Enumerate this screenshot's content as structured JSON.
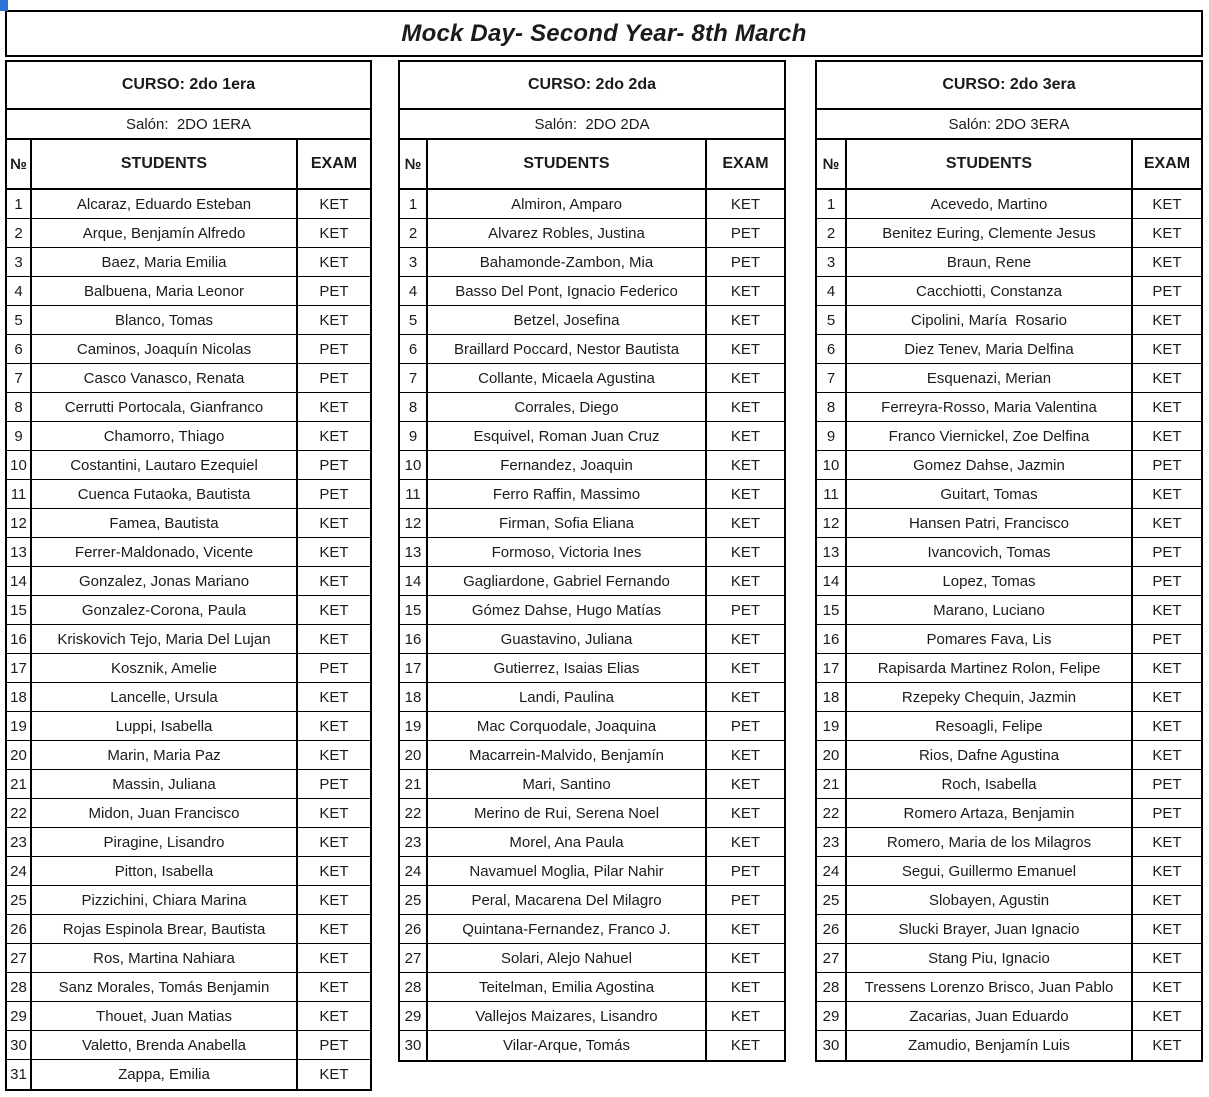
{
  "title": "Mock Day- Second Year- 8th March",
  "accent_color": "#2e73d9",
  "tables": [
    {
      "curso": "CURSO: 2do 1era",
      "salon": "Salón:  2DO 1ERA",
      "columns": [
        "№",
        "STUDENTS",
        "EXAM"
      ],
      "rows": [
        [
          "1",
          "Alcaraz, Eduardo Esteban",
          "KET"
        ],
        [
          "2",
          "Arque, Benjamín Alfredo",
          "KET"
        ],
        [
          "3",
          "Baez, Maria Emilia",
          "KET"
        ],
        [
          "4",
          "Balbuena, Maria Leonor",
          "PET"
        ],
        [
          "5",
          "Blanco, Tomas",
          "KET"
        ],
        [
          "6",
          "Caminos, Joaquín Nicolas",
          "PET"
        ],
        [
          "7",
          "Casco Vanasco, Renata",
          "PET"
        ],
        [
          "8",
          "Cerrutti Portocala, Gianfranco",
          "KET"
        ],
        [
          "9",
          "Chamorro, Thiago",
          "KET"
        ],
        [
          "10",
          "Costantini, Lautaro Ezequiel",
          "PET"
        ],
        [
          "11",
          "Cuenca Futaoka, Bautista",
          "PET"
        ],
        [
          "12",
          "Famea, Bautista",
          "KET"
        ],
        [
          "13",
          "Ferrer-Maldonado, Vicente",
          "KET"
        ],
        [
          "14",
          "Gonzalez, Jonas Mariano",
          "KET"
        ],
        [
          "15",
          "Gonzalez-Corona, Paula",
          "KET"
        ],
        [
          "16",
          "Kriskovich Tejo, Maria Del Lujan",
          "KET"
        ],
        [
          "17",
          "Kosznik, Amelie",
          "PET"
        ],
        [
          "18",
          "Lancelle, Ursula",
          "KET"
        ],
        [
          "19",
          "Luppi, Isabella",
          "KET"
        ],
        [
          "20",
          "Marin, Maria Paz",
          "KET"
        ],
        [
          "21",
          "Massin, Juliana",
          "PET"
        ],
        [
          "22",
          "Midon, Juan Francisco",
          "KET"
        ],
        [
          "23",
          "Piragine, Lisandro",
          "KET"
        ],
        [
          "24",
          "Pitton, Isabella",
          "KET"
        ],
        [
          "25",
          "Pizzichini, Chiara Marina",
          "KET"
        ],
        [
          "26",
          "Rojas Espinola Brear, Bautista",
          "KET"
        ],
        [
          "27",
          "Ros, Martina Nahiara",
          "KET"
        ],
        [
          "28",
          "Sanz Morales, Tomás Benjamin",
          "KET"
        ],
        [
          "29",
          "Thouet, Juan Matias",
          "KET"
        ],
        [
          "30",
          "Valetto, Brenda Anabella",
          "PET"
        ],
        [
          "31",
          "Zappa, Emilia",
          "KET"
        ]
      ]
    },
    {
      "curso": "CURSO: 2do 2da",
      "salon": "Salón:  2DO 2DA",
      "columns": [
        "№",
        "STUDENTS",
        "EXAM"
      ],
      "rows": [
        [
          "1",
          "Almiron, Amparo",
          "KET"
        ],
        [
          "2",
          "Alvarez Robles, Justina",
          "PET"
        ],
        [
          "3",
          "Bahamonde-Zambon, Mia",
          "PET"
        ],
        [
          "4",
          "Basso Del Pont, Ignacio Federico",
          "KET"
        ],
        [
          "5",
          "Betzel, Josefina",
          "KET"
        ],
        [
          "6",
          "Braillard Poccard, Nestor Bautista",
          "KET"
        ],
        [
          "7",
          "Collante, Micaela Agustina",
          "KET"
        ],
        [
          "8",
          "Corrales, Diego",
          "KET"
        ],
        [
          "9",
          "Esquivel, Roman Juan Cruz",
          "KET"
        ],
        [
          "10",
          "Fernandez, Joaquin",
          "KET"
        ],
        [
          "11",
          "Ferro Raffin, Massimo",
          "KET"
        ],
        [
          "12",
          "Firman, Sofia Eliana",
          "KET"
        ],
        [
          "13",
          "Formoso, Victoria Ines",
          "KET"
        ],
        [
          "14",
          "Gagliardone, Gabriel Fernando",
          "KET"
        ],
        [
          "15",
          "Gómez Dahse, Hugo Matías",
          "PET"
        ],
        [
          "16",
          "Guastavino, Juliana",
          "KET"
        ],
        [
          "17",
          "Gutierrez, Isaias Elias",
          "KET"
        ],
        [
          "18",
          "Landi, Paulina",
          "KET"
        ],
        [
          "19",
          "Mac Corquodale, Joaquina",
          "PET"
        ],
        [
          "20",
          "Macarrein-Malvido, Benjamín",
          "KET"
        ],
        [
          "21",
          "Mari, Santino",
          "KET"
        ],
        [
          "22",
          "Merino de Rui, Serena Noel",
          "KET"
        ],
        [
          "23",
          "Morel, Ana Paula",
          "KET"
        ],
        [
          "24",
          "Navamuel Moglia, Pilar Nahir",
          "PET"
        ],
        [
          "25",
          "Peral, Macarena Del Milagro",
          "PET"
        ],
        [
          "26",
          "Quintana-Fernandez, Franco J.",
          "KET"
        ],
        [
          "27",
          "Solari, Alejo Nahuel",
          "KET"
        ],
        [
          "28",
          "Teitelman, Emilia Agostina",
          "KET"
        ],
        [
          "29",
          "Vallejos Maizares, Lisandro",
          "KET"
        ],
        [
          "30",
          "Vilar-Arque, Tomás",
          "KET"
        ]
      ]
    },
    {
      "curso": "CURSO: 2do 3era",
      "salon": "Salón: 2DO 3ERA",
      "columns": [
        "№",
        "STUDENTS",
        "EXAM"
      ],
      "rows": [
        [
          "1",
          "Acevedo, Martino",
          "KET"
        ],
        [
          "2",
          "Benitez Euring, Clemente Jesus",
          "KET"
        ],
        [
          "3",
          "Braun, Rene",
          "KET"
        ],
        [
          "4",
          "Cacchiotti, Constanza",
          "PET"
        ],
        [
          "5",
          "Cipolini, María  Rosario",
          "KET"
        ],
        [
          "6",
          "Diez Tenev, Maria Delfina",
          "KET"
        ],
        [
          "7",
          "Esquenazi, Merian",
          "KET"
        ],
        [
          "8",
          "Ferreyra-Rosso, Maria Valentina",
          "KET"
        ],
        [
          "9",
          "Franco Viernickel, Zoe Delfina",
          "KET"
        ],
        [
          "10",
          "Gomez Dahse, Jazmin",
          "PET"
        ],
        [
          "11",
          "Guitart, Tomas",
          "KET"
        ],
        [
          "12",
          "Hansen Patri, Francisco",
          "KET"
        ],
        [
          "13",
          "Ivancovich, Tomas",
          "PET"
        ],
        [
          "14",
          "Lopez, Tomas",
          "PET"
        ],
        [
          "15",
          "Marano, Luciano",
          "KET"
        ],
        [
          "16",
          "Pomares Fava, Lis",
          "PET"
        ],
        [
          "17",
          "Rapisarda Martinez Rolon, Felipe",
          "KET"
        ],
        [
          "18",
          "Rzepeky Chequin, Jazmin",
          "KET"
        ],
        [
          "19",
          "Resoagli, Felipe",
          "KET"
        ],
        [
          "20",
          "Rios, Dafne Agustina",
          "KET"
        ],
        [
          "21",
          "Roch, Isabella",
          "PET"
        ],
        [
          "22",
          "Romero Artaza, Benjamin",
          "PET"
        ],
        [
          "23",
          "Romero, Maria de los Milagros",
          "KET"
        ],
        [
          "24",
          "Segui, Guillermo Emanuel",
          "KET"
        ],
        [
          "25",
          "Slobayen, Agustin",
          "KET"
        ],
        [
          "26",
          "Slucki Brayer, Juan Ignacio",
          "KET"
        ],
        [
          "27",
          "Stang Piu, Ignacio",
          "KET"
        ],
        [
          "28",
          "Tressens Lorenzo Brisco, Juan Pablo",
          "KET"
        ],
        [
          "29",
          "Zacarias, Juan Eduardo",
          "KET"
        ],
        [
          "30",
          "Zamudio, Benjamín Luis",
          "KET"
        ]
      ]
    }
  ]
}
